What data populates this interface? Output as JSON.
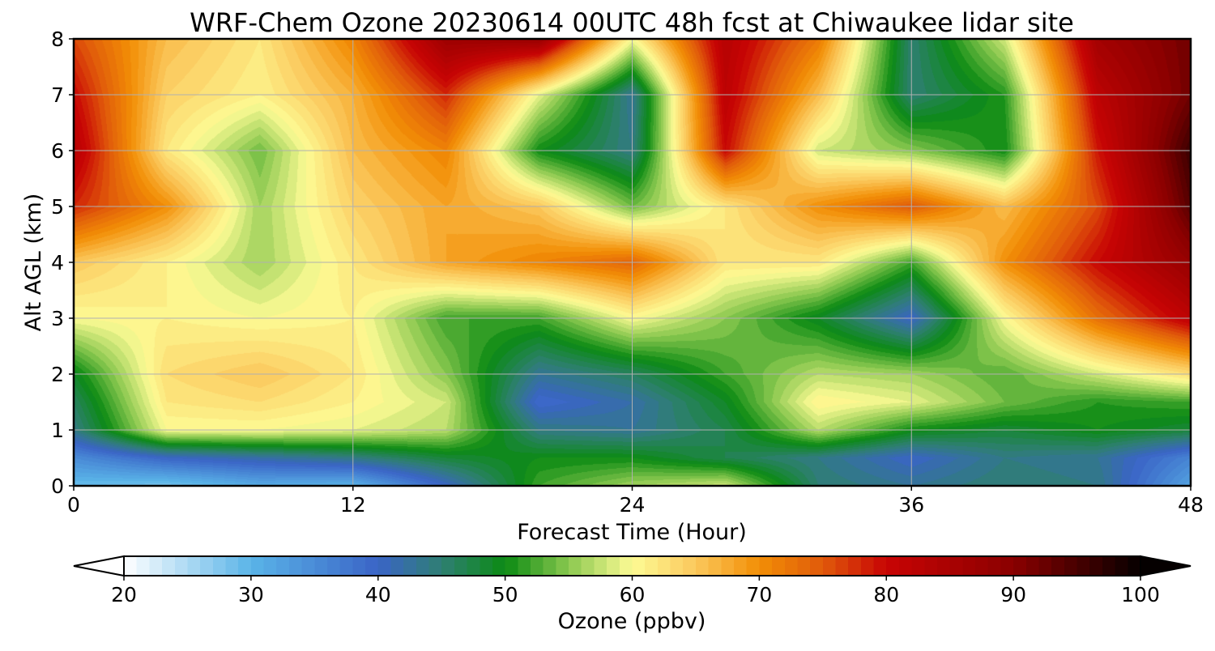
{
  "chart_data": {
    "type": "heatmap",
    "title": "WRF-Chem Ozone  20230614 00UTC 48h fcst at Chiwaukee lidar site",
    "xlabel": "Forecast Time (Hour)",
    "ylabel": "Alt AGL (km)",
    "xlim": [
      0,
      48
    ],
    "ylim": [
      0,
      8
    ],
    "xticks": [
      0,
      12,
      24,
      36,
      48
    ],
    "yticks": [
      0,
      1,
      2,
      3,
      4,
      5,
      6,
      7,
      8
    ],
    "grid": true,
    "x": [
      0,
      4,
      8,
      12,
      16,
      20,
      24,
      28,
      32,
      36,
      40,
      44,
      48
    ],
    "y": [
      0,
      0.5,
      1,
      1.5,
      2,
      3,
      4,
      5,
      6,
      7,
      8
    ],
    "z": [
      [
        29,
        28,
        31,
        30,
        40,
        52,
        56,
        58,
        45,
        43,
        45,
        44,
        32
      ],
      [
        35,
        40,
        42,
        44,
        48,
        50,
        50,
        47,
        44,
        40,
        44,
        43,
        36
      ],
      [
        44,
        60,
        60,
        59,
        57,
        44,
        43,
        47,
        57,
        50,
        48,
        50,
        48
      ],
      [
        46,
        62,
        63,
        61,
        58,
        39,
        42,
        49,
        61,
        59,
        54,
        51,
        52
      ],
      [
        49,
        63,
        65,
        62,
        55,
        43,
        46,
        52,
        57,
        56,
        53,
        58,
        63
      ],
      [
        60,
        61,
        60,
        61,
        52,
        52,
        60,
        55,
        49,
        40,
        60,
        73,
        82
      ],
      [
        65,
        61,
        56,
        62,
        68,
        71,
        74,
        62,
        62,
        52,
        70,
        80,
        88
      ],
      [
        78,
        70,
        56,
        64,
        68,
        65,
        54,
        62,
        70,
        75,
        66,
        76,
        94
      ],
      [
        83,
        62,
        54,
        66,
        71,
        50,
        44,
        80,
        58,
        55,
        50,
        79,
        96
      ],
      [
        80,
        64,
        61,
        67,
        78,
        59,
        43,
        82,
        66,
        45,
        51,
        82,
        92
      ],
      [
        76,
        66,
        62,
        71,
        87,
        88,
        60,
        83,
        72,
        45,
        58,
        86,
        92
      ]
    ],
    "colorbar": {
      "label": "Ozone  (ppbv)",
      "min": 20,
      "max": 100,
      "ticks": [
        20,
        30,
        40,
        50,
        60,
        70,
        80,
        90,
        100
      ],
      "extend": "both"
    },
    "colormap": [
      {
        "v": 20,
        "c": "#ffffff"
      },
      {
        "v": 30,
        "c": "#5ab4e8"
      },
      {
        "v": 40,
        "c": "#3a64c6"
      },
      {
        "v": 45,
        "c": "#2f7f73"
      },
      {
        "v": 50,
        "c": "#0b8a13"
      },
      {
        "v": 55,
        "c": "#8ac84f"
      },
      {
        "v": 60,
        "c": "#fdfb95"
      },
      {
        "v": 65,
        "c": "#fbc85c"
      },
      {
        "v": 70,
        "c": "#f28e05"
      },
      {
        "v": 75,
        "c": "#e05a0b"
      },
      {
        "v": 80,
        "c": "#c80404"
      },
      {
        "v": 90,
        "c": "#8a0000"
      },
      {
        "v": 100,
        "c": "#050000"
      }
    ]
  }
}
